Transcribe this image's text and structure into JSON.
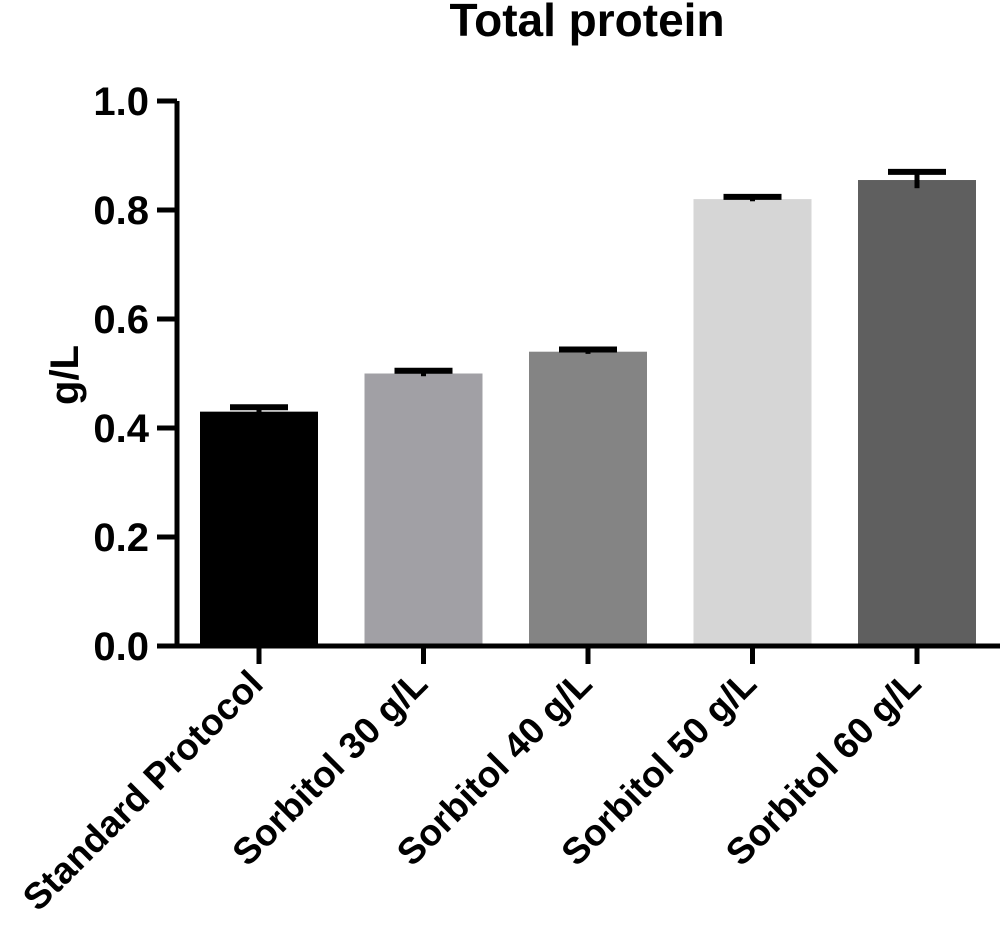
{
  "chart_data": {
    "type": "bar",
    "title": "Total protein",
    "xlabel": "",
    "ylabel": "g/L",
    "ylim": [
      0,
      1.0
    ],
    "y_ticks": [
      0.0,
      0.2,
      0.4,
      0.6,
      0.8,
      1.0
    ],
    "y_tick_labels": [
      "0.0",
      "0.2",
      "0.4",
      "0.6",
      "0.8",
      "1.0"
    ],
    "categories": [
      "Standard Protocol",
      "Sorbitol 30 g/L",
      "Sorbitol 40 g/L",
      "Sorbitol 50 g/L",
      "Sorbitol 60 g/L"
    ],
    "values": [
      0.43,
      0.5,
      0.54,
      0.82,
      0.855
    ],
    "errors": [
      0.008,
      0.005,
      0.004,
      0.004,
      0.015
    ],
    "bar_colors": [
      "#000000",
      "#a1a0a5",
      "#848484",
      "#d6d6d6",
      "#5f5f5f"
    ],
    "grid": false,
    "legend": "none"
  }
}
